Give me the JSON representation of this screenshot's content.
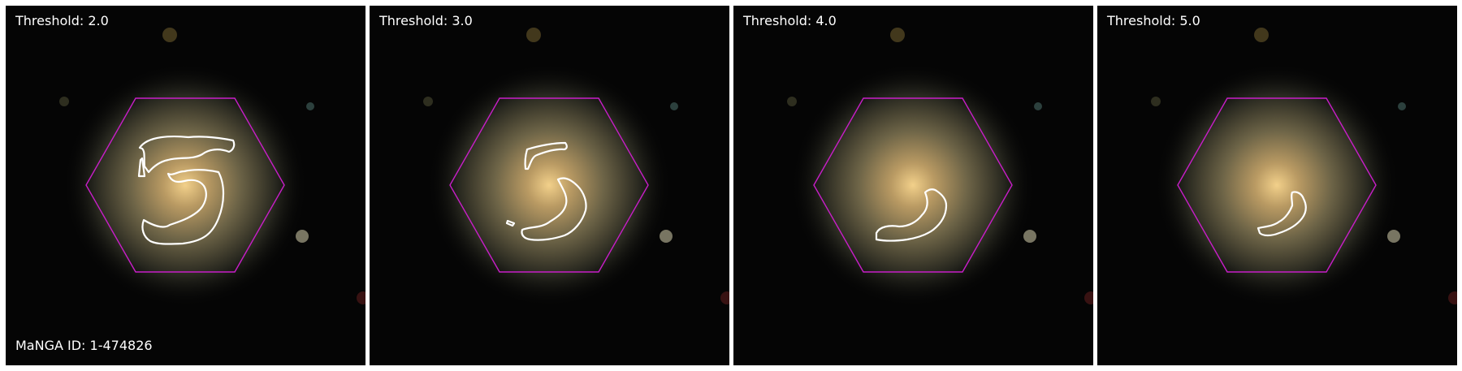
{
  "galaxy_id_text": "MaNGA ID: 1-474826",
  "hexagon_color": "#c81ec8",
  "contour_color": "#ffffff",
  "panels": [
    {
      "threshold_text": "Threshold: 2.0"
    },
    {
      "threshold_text": "Threshold: 3.0"
    },
    {
      "threshold_text": "Threshold: 4.0"
    },
    {
      "threshold_text": "Threshold: 5.0"
    }
  ]
}
